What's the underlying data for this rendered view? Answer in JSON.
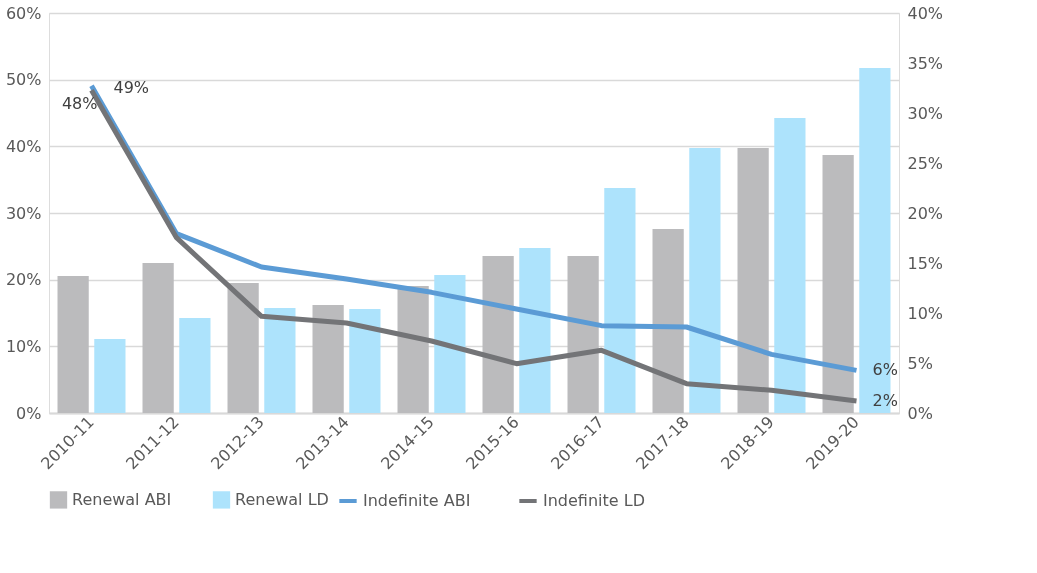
{
  "chart_data": {
    "type": "bar",
    "categories": [
      "2010-11",
      "2011-12",
      "2012-13",
      "2013-14",
      "2014-15",
      "2015-16",
      "2016-17",
      "2017-18",
      "2018-19",
      "2019-20"
    ],
    "series": [
      {
        "name": "Renewal ABI",
        "axis": "y2",
        "color": "#bbbbbd",
        "values": [
          13.7,
          15.0,
          13.0,
          10.8,
          12.7,
          15.7,
          15.7,
          18.4,
          26.5,
          25.8
        ]
      },
      {
        "name": "Renewal LD",
        "axis": "y2",
        "color": "#ade3fc",
        "values": [
          7.4,
          9.5,
          10.5,
          10.4,
          13.8,
          16.5,
          22.5,
          26.5,
          29.5,
          34.5
        ]
      },
      {
        "name": "Indefinite ABI",
        "type": "line",
        "color": "#5b9bd5",
        "values": [
          49.1,
          26.9,
          21.9,
          20.1,
          18.1,
          15.6,
          13.1,
          12.9,
          8.8,
          6.4
        ],
        "value_labels": [
          "49%",
          null,
          null,
          null,
          null,
          null,
          null,
          null,
          null,
          "6%"
        ]
      },
      {
        "name": "Indefinite LD",
        "type": "line",
        "color": "#737477",
        "values": [
          48.4,
          26.3,
          14.5,
          13.5,
          10.8,
          7.4,
          9.4,
          4.4,
          3.4,
          1.8
        ],
        "value_labels": [
          "48%",
          null,
          null,
          null,
          null,
          null,
          null,
          null,
          null,
          "2%"
        ]
      }
    ],
    "ylim": [
      0,
      60
    ],
    "yticks": [
      {
        "value": 0,
        "label": "0%"
      },
      {
        "value": 10,
        "label": "10%"
      },
      {
        "value": 20,
        "label": "20%"
      },
      {
        "value": 30,
        "label": "30%"
      },
      {
        "value": 40,
        "label": "40%"
      },
      {
        "value": 50,
        "label": "50%"
      },
      {
        "value": 60,
        "label": "60%"
      }
    ],
    "y2lim": [
      0,
      40
    ],
    "y2ticks": [
      {
        "value": 0,
        "label": "0%"
      },
      {
        "value": 5,
        "label": "5%"
      },
      {
        "value": 10,
        "label": "10%"
      },
      {
        "value": 15,
        "label": "15%"
      },
      {
        "value": 20,
        "label": "20%"
      },
      {
        "value": 25,
        "label": "25%"
      },
      {
        "value": 30,
        "label": "30%"
      },
      {
        "value": 35,
        "label": "35%"
      },
      {
        "value": 40,
        "label": "40%"
      }
    ],
    "grid": "y",
    "legend": "bottom",
    "marker": "none",
    "line_style": "solid"
  }
}
